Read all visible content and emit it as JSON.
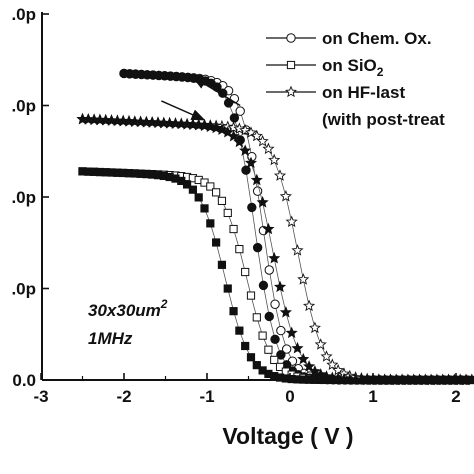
{
  "chart_data": {
    "type": "scatter",
    "xlabel": "Voltage ( V )",
    "ylabel": "",
    "xlim": [
      -3,
      2.2
    ],
    "ylim": [
      0,
      3.0
    ],
    "x_ticks": [
      {
        "value": -3,
        "label": "-3"
      },
      {
        "value": -2,
        "label": "-2"
      },
      {
        "value": -1,
        "label": "-1"
      },
      {
        "value": 0,
        "label": "0"
      },
      {
        "value": 1,
        "label": "1"
      },
      {
        "value": 2,
        "label": "2"
      }
    ],
    "y_ticks": [
      {
        "value": 0,
        "label": "0.0"
      },
      {
        "value": 1,
        "label": ".0p"
      },
      {
        "value": 2,
        "label": ".0p"
      },
      {
        "value": 3,
        "label": ".0p"
      },
      {
        "value": 4,
        "label": ".0p"
      }
    ],
    "grid": false,
    "legend_position": "top-right",
    "legend": [
      {
        "label": "on Chem. Ox.",
        "marker": "circle"
      },
      {
        "label": "on SiO",
        "subscript": "2",
        "marker": "square"
      },
      {
        "label": "on HF-last",
        "marker": "star"
      },
      {
        "label": "(with post-treat",
        "marker": "none"
      }
    ],
    "annotations": [
      {
        "text": "30x30um",
        "superscript": "2"
      },
      {
        "text": "1MHz"
      }
    ],
    "series": [
      {
        "name": "on Chem. Ox.",
        "marker": "circle",
        "sweeps": [
          {
            "direction": "reverse",
            "fill": "open",
            "center": -0.32,
            "width": 0.13,
            "plateau": 3.35,
            "x_start": -2.0,
            "x_end": 2.2
          },
          {
            "direction": "forward",
            "fill": "filled",
            "center": -0.42,
            "width": 0.13,
            "plateau": 3.35,
            "x_start": -2.0,
            "x_end": 2.2
          }
        ]
      },
      {
        "name": "on SiO2",
        "marker": "square",
        "sweeps": [
          {
            "direction": "reverse",
            "fill": "open",
            "center": -0.52,
            "width": 0.15,
            "plateau": 2.28,
            "x_start": -2.5,
            "x_end": 2.2
          },
          {
            "direction": "forward",
            "fill": "filled",
            "center": -0.78,
            "width": 0.15,
            "plateau": 2.28,
            "x_start": -2.5,
            "x_end": 2.2
          }
        ]
      },
      {
        "name": "on HF-last (with post-treat",
        "marker": "star",
        "sweeps": [
          {
            "direction": "reverse",
            "fill": "open",
            "center": 0.1,
            "width": 0.15,
            "plateau": 2.85,
            "x_start": -2.5,
            "x_end": 2.2
          },
          {
            "direction": "forward",
            "fill": "filled",
            "center": -0.2,
            "width": 0.15,
            "plateau": 2.85,
            "x_start": -2.5,
            "x_end": 2.2
          }
        ]
      }
    ],
    "sweep_arrows": [
      {
        "label": "",
        "from": [
          -0.6,
          3.0
        ],
        "to": [
          -1.15,
          3.3
        ]
      },
      {
        "label": "",
        "from": [
          -1.55,
          3.05
        ],
        "to": [
          -1.05,
          2.85
        ]
      }
    ]
  }
}
